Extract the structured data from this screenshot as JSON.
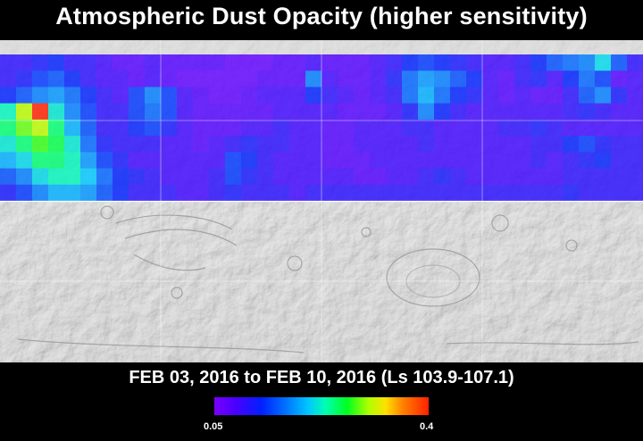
{
  "title": "Atmospheric Dust Opacity (higher sensitivity)",
  "date_range_caption": "FEB 03, 2016 to FEB 10, 2016 (Ls 103.9-107.1)",
  "colorbar": {
    "min_label": "0.05",
    "max_label": "0.4",
    "colors": [
      "#7a00ff",
      "#4a00ff",
      "#0020ff",
      "#0070ff",
      "#00c8ff",
      "#00ffb0",
      "#00ff20",
      "#b0ff00",
      "#ffe000",
      "#ff8000",
      "#ff2000"
    ]
  },
  "dust_grid": {
    "rows": 9,
    "cols": 40,
    "note_hidden": "",
    "values": [
      [
        0.1,
        0.1,
        0.11,
        0.12,
        0.1,
        0.1,
        0.09,
        0.08,
        0.08,
        0.09,
        0.08,
        0.08,
        0.08,
        0.08,
        0.07,
        0.07,
        0.07,
        0.08,
        0.08,
        0.09,
        0.08,
        0.08,
        0.08,
        0.09,
        0.1,
        0.12,
        0.13,
        0.12,
        0.11,
        0.1,
        0.09,
        0.09,
        0.1,
        0.12,
        0.14,
        0.15,
        0.16,
        0.2,
        0.14,
        0.1
      ],
      [
        0.1,
        0.11,
        0.13,
        0.14,
        0.12,
        0.1,
        0.09,
        0.09,
        0.08,
        0.09,
        0.08,
        0.07,
        0.07,
        0.07,
        0.07,
        0.07,
        0.08,
        0.08,
        0.08,
        0.16,
        0.09,
        0.08,
        0.08,
        0.09,
        0.11,
        0.15,
        0.17,
        0.16,
        0.14,
        0.12,
        0.09,
        0.08,
        0.1,
        0.11,
        0.09,
        0.12,
        0.15,
        0.13,
        0.08,
        0.09
      ],
      [
        0.12,
        0.14,
        0.16,
        0.17,
        0.15,
        0.12,
        0.1,
        0.09,
        0.13,
        0.16,
        0.13,
        0.09,
        0.08,
        0.07,
        0.07,
        0.08,
        0.09,
        0.09,
        0.09,
        0.12,
        0.1,
        0.09,
        0.08,
        0.09,
        0.1,
        0.15,
        0.18,
        0.15,
        0.12,
        0.11,
        0.09,
        0.08,
        0.09,
        0.08,
        0.08,
        0.1,
        0.14,
        0.16,
        0.11,
        0.09
      ],
      [
        0.22,
        0.3,
        0.4,
        0.21,
        0.16,
        0.13,
        0.1,
        0.1,
        0.13,
        0.15,
        0.13,
        0.09,
        0.08,
        0.08,
        0.08,
        0.08,
        0.08,
        0.09,
        0.09,
        0.09,
        0.09,
        0.08,
        0.08,
        0.08,
        0.09,
        0.11,
        0.16,
        0.12,
        0.1,
        0.09,
        0.09,
        0.09,
        0.09,
        0.09,
        0.09,
        0.1,
        0.11,
        0.1,
        0.09,
        0.09
      ],
      [
        0.24,
        0.28,
        0.3,
        0.24,
        0.18,
        0.14,
        0.1,
        0.1,
        0.12,
        0.13,
        0.11,
        0.09,
        0.08,
        0.08,
        0.08,
        0.09,
        0.09,
        0.1,
        0.09,
        0.09,
        0.08,
        0.08,
        0.09,
        0.09,
        0.09,
        0.1,
        0.1,
        0.09,
        0.09,
        0.09,
        0.09,
        0.1,
        0.1,
        0.11,
        0.1,
        0.09,
        0.09,
        0.09,
        0.09,
        0.09
      ],
      [
        0.21,
        0.24,
        0.27,
        0.25,
        0.21,
        0.15,
        0.11,
        0.1,
        0.1,
        0.1,
        0.09,
        0.09,
        0.08,
        0.09,
        0.1,
        0.11,
        0.1,
        0.1,
        0.09,
        0.09,
        0.08,
        0.08,
        0.09,
        0.09,
        0.09,
        0.09,
        0.1,
        0.09,
        0.09,
        0.09,
        0.09,
        0.09,
        0.09,
        0.1,
        0.1,
        0.12,
        0.13,
        0.11,
        0.1,
        0.1
      ],
      [
        0.18,
        0.2,
        0.24,
        0.24,
        0.22,
        0.17,
        0.13,
        0.11,
        0.09,
        0.09,
        0.09,
        0.09,
        0.09,
        0.09,
        0.13,
        0.12,
        0.1,
        0.09,
        0.09,
        0.09,
        0.08,
        0.08,
        0.08,
        0.09,
        0.09,
        0.09,
        0.09,
        0.09,
        0.09,
        0.09,
        0.09,
        0.09,
        0.09,
        0.1,
        0.09,
        0.1,
        0.11,
        0.12,
        0.1,
        0.1
      ],
      [
        0.14,
        0.16,
        0.2,
        0.22,
        0.22,
        0.19,
        0.15,
        0.12,
        0.11,
        0.1,
        0.09,
        0.09,
        0.09,
        0.1,
        0.13,
        0.11,
        0.1,
        0.09,
        0.09,
        0.09,
        0.09,
        0.09,
        0.08,
        0.08,
        0.09,
        0.09,
        0.1,
        0.11,
        0.1,
        0.09,
        0.09,
        0.09,
        0.09,
        0.09,
        0.09,
        0.1,
        0.1,
        0.1,
        0.1,
        0.1
      ],
      [
        0.11,
        0.13,
        0.16,
        0.18,
        0.18,
        0.17,
        0.14,
        0.12,
        0.1,
        0.1,
        0.1,
        0.09,
        0.09,
        0.1,
        0.11,
        0.1,
        0.1,
        0.1,
        0.09,
        0.1,
        0.1,
        0.1,
        0.1,
        0.1,
        0.1,
        0.1,
        0.1,
        0.1,
        0.1,
        0.1,
        0.1,
        0.1,
        0.1,
        0.1,
        0.1,
        0.11,
        0.1,
        0.1,
        0.1,
        0.1
      ]
    ]
  }
}
